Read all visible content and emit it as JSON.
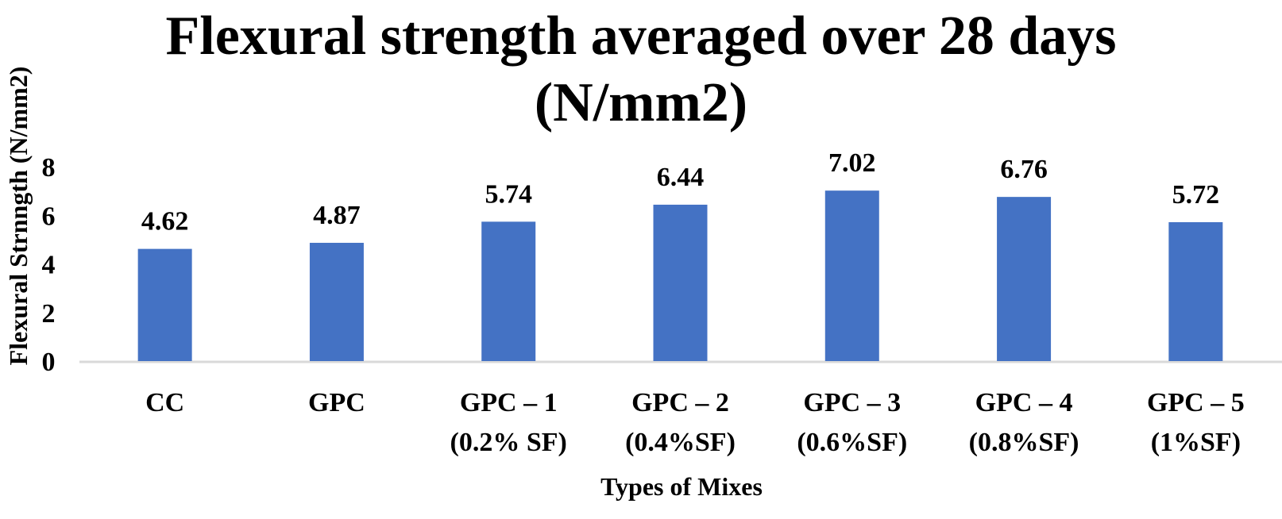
{
  "chart_data": {
    "type": "bar",
    "title": [
      "Flexural strength averaged over 28 days",
      "(N/mm2)"
    ],
    "xlabel": "Types of Mixes",
    "ylabel": "Flexural Strnngth (N/mm2)",
    "categories": [
      [
        "CC"
      ],
      [
        "GPC"
      ],
      [
        "GPC – 1",
        "(0.2% SF)"
      ],
      [
        "GPC – 2",
        "(0.4%SF)"
      ],
      [
        "GPC – 3",
        "(0.6%SF)"
      ],
      [
        "GPC – 4",
        "(0.8%SF)"
      ],
      [
        "GPC – 5",
        "(1%SF)"
      ]
    ],
    "values": [
      4.62,
      4.87,
      5.74,
      6.44,
      7.02,
      6.76,
      5.72
    ],
    "data_labels": [
      "4.62",
      "4.87",
      "5.74",
      "6.44",
      "7.02",
      "6.76",
      "5.72"
    ],
    "yticks": [
      0,
      2,
      4,
      6,
      8
    ],
    "ylim": [
      0,
      8
    ],
    "grid": false,
    "legend": "none",
    "bar_color": "#4472C4",
    "axis_color": "#D9D9D9"
  }
}
